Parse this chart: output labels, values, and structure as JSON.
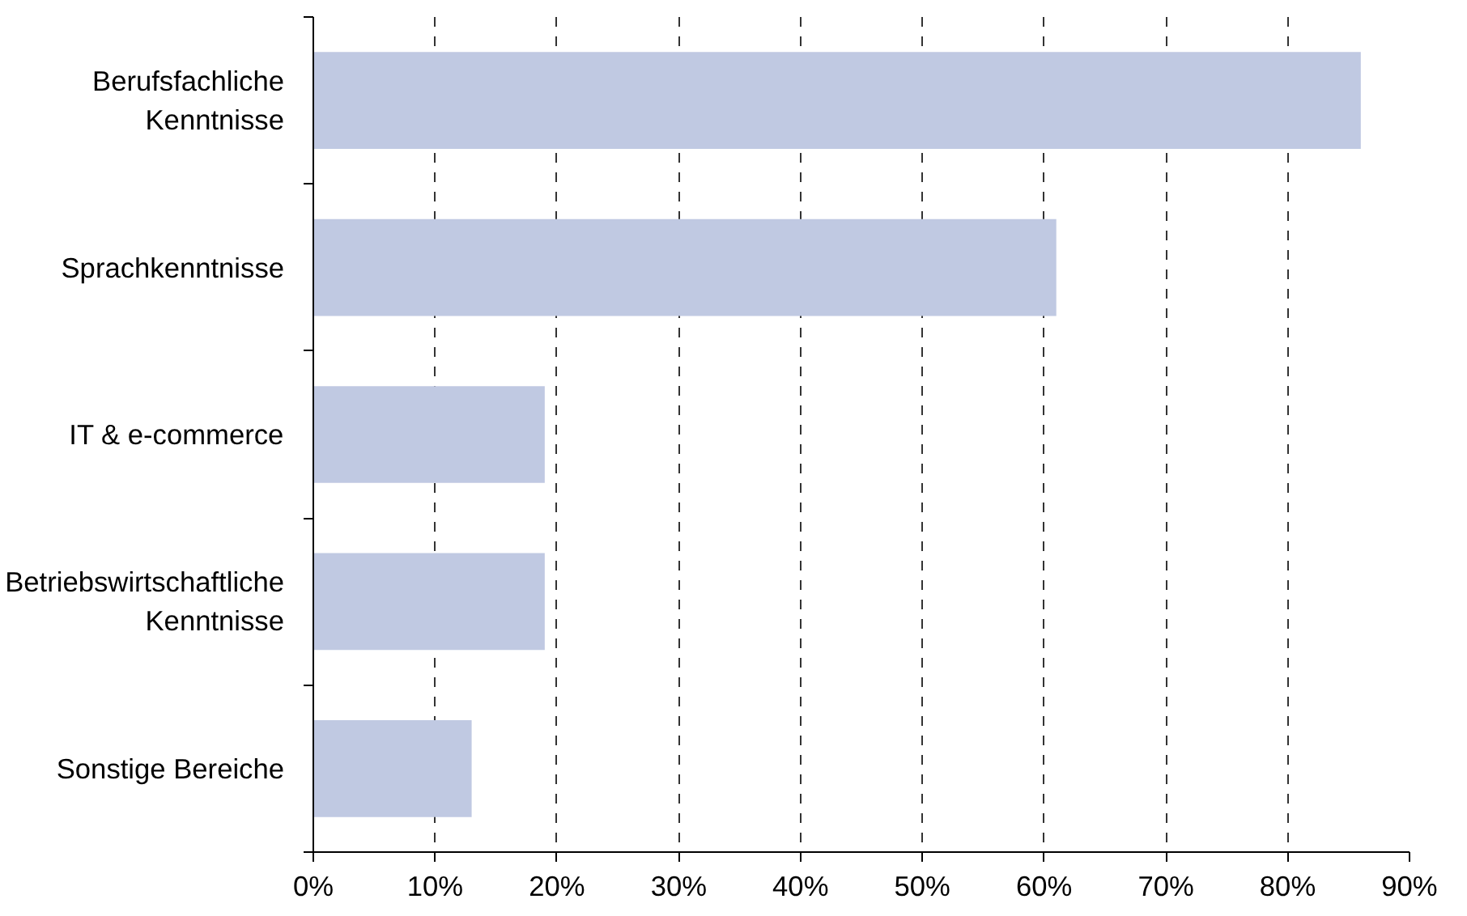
{
  "chart_data": {
    "type": "bar",
    "orientation": "horizontal",
    "categories": [
      "Berufsfachliche\nKenntnisse",
      "Sprachkenntnisse",
      "IT & e-commerce",
      "Betriebswirtschaftliche\nKenntnisse",
      "Sonstige Bereiche"
    ],
    "values": [
      86,
      61,
      19,
      19,
      13
    ],
    "color": "#c0c9e2",
    "xlim": [
      0,
      90
    ],
    "xticks": [
      {
        "value": 0,
        "label": "0%"
      },
      {
        "value": 10,
        "label": "10%"
      },
      {
        "value": 20,
        "label": "20%"
      },
      {
        "value": 30,
        "label": "30%"
      },
      {
        "value": 40,
        "label": "40%"
      },
      {
        "value": 50,
        "label": "50%"
      },
      {
        "value": 60,
        "label": "60%"
      },
      {
        "value": 70,
        "label": "70%"
      },
      {
        "value": 80,
        "label": "80%"
      },
      {
        "value": 90,
        "label": "90%"
      }
    ],
    "grid": "x"
  }
}
